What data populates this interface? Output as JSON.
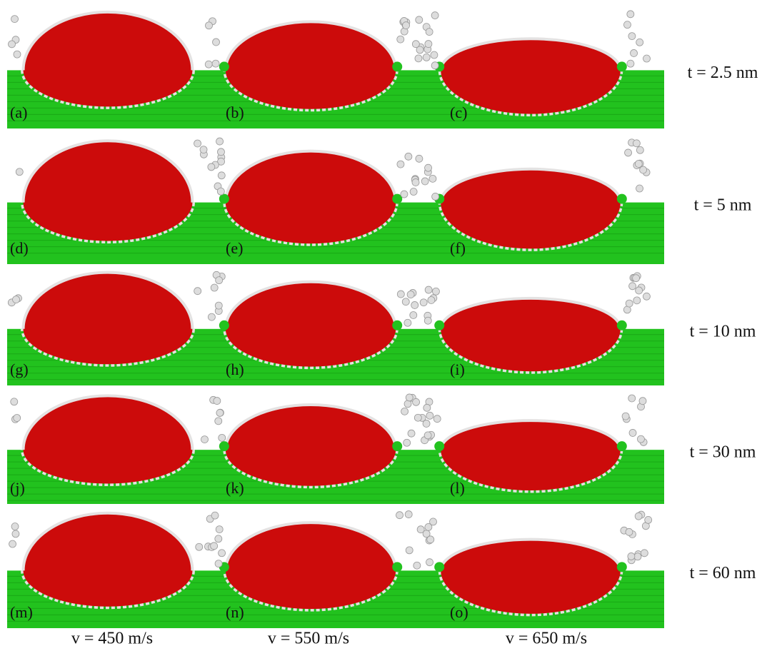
{
  "panels": [
    [
      "(a)",
      "(b)",
      "(c)"
    ],
    [
      "(d)",
      "(e)",
      "(f)"
    ],
    [
      "(g)",
      "(h)",
      "(i)"
    ],
    [
      "(j)",
      "(k)",
      "(l)"
    ],
    [
      "(m)",
      "(n)",
      "(o)"
    ]
  ],
  "row_labels": [
    "t = 2.5 nm",
    "t = 5 nm",
    "t = 10 nm",
    "t = 30 nm",
    "t = 60 nm"
  ],
  "column_labels": [
    "v = 450 m/s",
    "v = 550 m/s",
    "v = 650 m/s"
  ]
}
